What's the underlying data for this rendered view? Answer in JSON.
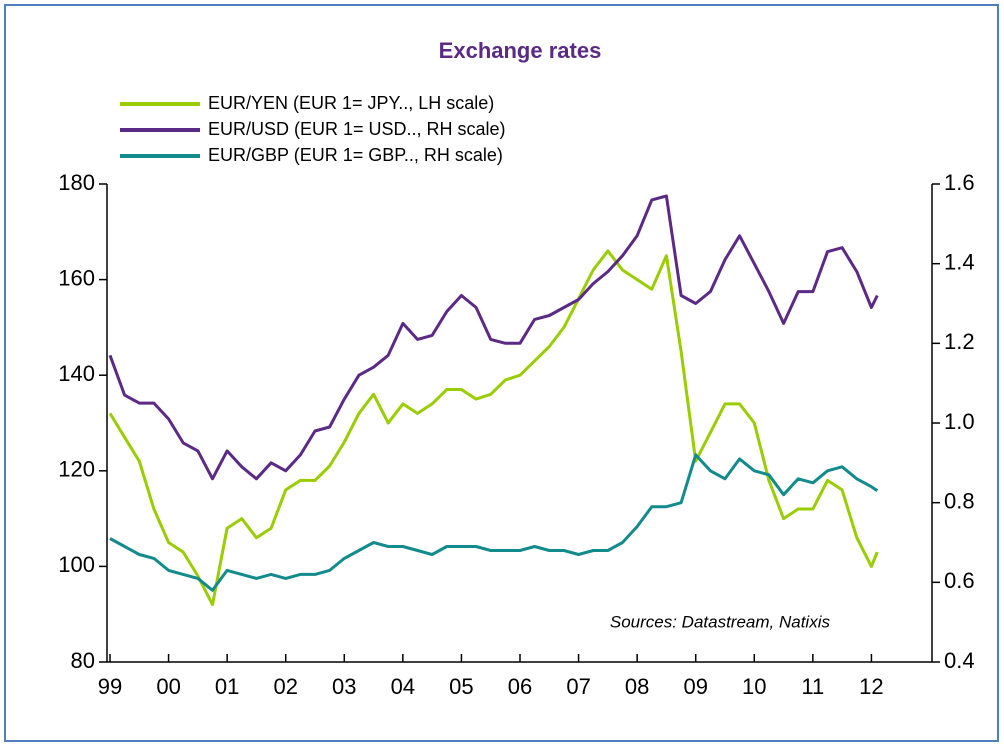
{
  "chart_data": {
    "type": "line",
    "title": "Exchange rates",
    "annotations": [
      "Sources: Datastream, Natixis"
    ],
    "legend": "top-left",
    "x": [
      1999,
      1999.25,
      1999.5,
      1999.75,
      2000,
      2000.25,
      2000.5,
      2000.75,
      2001,
      2001.25,
      2001.5,
      2001.75,
      2002,
      2002.25,
      2002.5,
      2002.75,
      2003,
      2003.25,
      2003.5,
      2003.75,
      2004,
      2004.25,
      2004.5,
      2004.75,
      2005,
      2005.25,
      2005.5,
      2005.75,
      2006,
      2006.25,
      2006.5,
      2006.75,
      2007,
      2007.25,
      2007.5,
      2007.75,
      2008,
      2008.25,
      2008.5,
      2008.75,
      2009,
      2009.25,
      2009.5,
      2009.75,
      2010,
      2010.25,
      2010.5,
      2010.75,
      2011,
      2011.25,
      2011.5,
      2011.75,
      2012,
      2012.1
    ],
    "xlim": [
      1999,
      2013
    ],
    "xticks": [
      {
        "value": 1999,
        "label": "99"
      },
      {
        "value": 2000,
        "label": "00"
      },
      {
        "value": 2001,
        "label": "01"
      },
      {
        "value": 2002,
        "label": "02"
      },
      {
        "value": 2003,
        "label": "03"
      },
      {
        "value": 2004,
        "label": "04"
      },
      {
        "value": 2005,
        "label": "05"
      },
      {
        "value": 2006,
        "label": "06"
      },
      {
        "value": 2007,
        "label": "07"
      },
      {
        "value": 2008,
        "label": "08"
      },
      {
        "value": 2009,
        "label": "09"
      },
      {
        "value": 2010,
        "label": "10"
      },
      {
        "value": 2011,
        "label": "11"
      },
      {
        "value": 2012,
        "label": "12"
      }
    ],
    "ylim": [
      80,
      180
    ],
    "yticks": [
      80,
      100,
      120,
      140,
      160,
      180
    ],
    "y2lim": [
      0.4,
      1.6
    ],
    "y2ticks": [
      0.4,
      0.6,
      0.8,
      {
        "value": 1,
        "label": "1.0"
      },
      1.2,
      1.4,
      1.6
    ],
    "series": [
      {
        "name": "EUR/YEN (EUR 1= JPY.., LH scale)",
        "color": "#9acd00",
        "axis": "y",
        "values": [
          132,
          127,
          122,
          112,
          105,
          103,
          98,
          92,
          108,
          110,
          106,
          108,
          116,
          118,
          118,
          121,
          126,
          132,
          136,
          130,
          134,
          132,
          134,
          137,
          137,
          135,
          136,
          139,
          140,
          143,
          146,
          150,
          156,
          162,
          166,
          162,
          160,
          158,
          165,
          145,
          122,
          128,
          134,
          134,
          130,
          118,
          110,
          112,
          112,
          118,
          116,
          106,
          100,
          103
        ]
      },
      {
        "name": "EUR/USD (EUR 1= USD.., RH scale)",
        "color": "#5b2a86",
        "axis": "y2",
        "values": [
          1.17,
          1.07,
          1.05,
          1.05,
          1.01,
          0.95,
          0.93,
          0.86,
          0.93,
          0.89,
          0.86,
          0.9,
          0.88,
          0.92,
          0.98,
          0.99,
          1.06,
          1.12,
          1.14,
          1.17,
          1.25,
          1.21,
          1.22,
          1.28,
          1.32,
          1.29,
          1.21,
          1.2,
          1.2,
          1.26,
          1.27,
          1.29,
          1.31,
          1.35,
          1.38,
          1.42,
          1.47,
          1.56,
          1.57,
          1.32,
          1.3,
          1.33,
          1.41,
          1.47,
          1.4,
          1.33,
          1.25,
          1.33,
          1.33,
          1.43,
          1.44,
          1.38,
          1.29,
          1.32
        ]
      },
      {
        "name": "EUR/GBP (EUR 1= GBP.., RH scale)",
        "color": "#138a8c",
        "axis": "y2",
        "values": [
          0.71,
          0.69,
          0.67,
          0.66,
          0.63,
          0.62,
          0.61,
          0.58,
          0.63,
          0.62,
          0.61,
          0.62,
          0.61,
          0.62,
          0.62,
          0.63,
          0.66,
          0.68,
          0.7,
          0.69,
          0.69,
          0.68,
          0.67,
          0.69,
          0.69,
          0.69,
          0.68,
          0.68,
          0.68,
          0.69,
          0.68,
          0.68,
          0.67,
          0.68,
          0.68,
          0.7,
          0.74,
          0.79,
          0.79,
          0.8,
          0.92,
          0.88,
          0.86,
          0.91,
          0.88,
          0.87,
          0.82,
          0.86,
          0.85,
          0.88,
          0.89,
          0.86,
          0.84,
          0.83
        ]
      }
    ]
  }
}
